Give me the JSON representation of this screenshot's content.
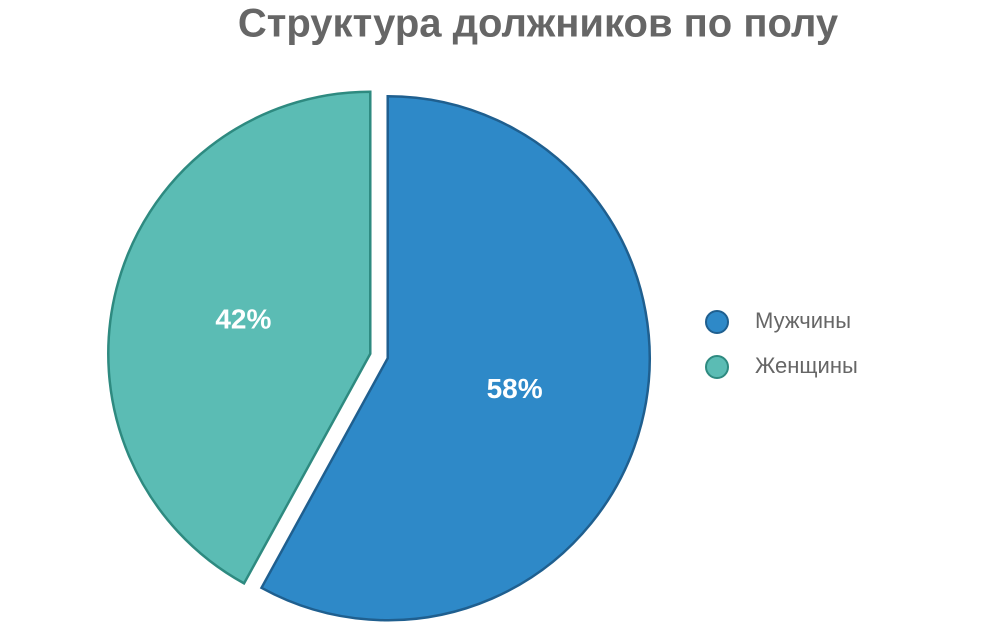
{
  "chart_data": {
    "type": "pie",
    "title": "Структура должников по полу",
    "categories": [
      "Мужчины",
      "Женщины"
    ],
    "values": [
      58,
      42
    ],
    "value_labels": [
      "58%",
      "42%"
    ],
    "colors": [
      "#2e89c8",
      "#5bbcb4"
    ],
    "legend": "right"
  }
}
